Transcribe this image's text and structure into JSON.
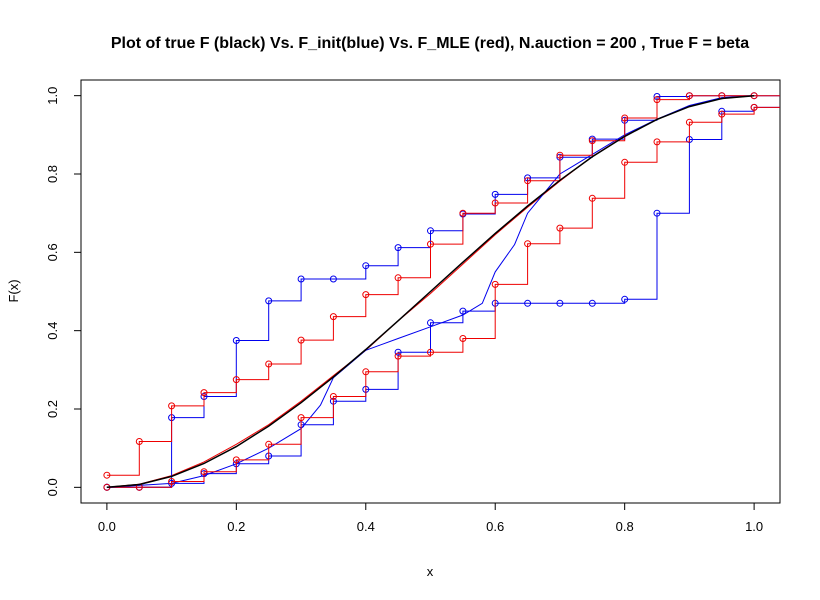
{
  "chart_data": {
    "type": "line",
    "title": "Plot of true F (black) Vs. F_init(blue) Vs. F_MLE (red), N.auction = 200 , True F = beta",
    "xlabel": "x",
    "ylabel": "F(x)",
    "xlim": [
      -0.04,
      1.04
    ],
    "ylim": [
      -0.04,
      1.04
    ],
    "x_ticks": [
      "0.0",
      "0.2",
      "0.4",
      "0.6",
      "0.8",
      "1.0"
    ],
    "y_ticks": [
      "0.0",
      "0.2",
      "0.4",
      "0.6",
      "0.8",
      "1.0"
    ],
    "grid": false,
    "colors": {
      "true": "#000000",
      "init": "#0000ee",
      "mle": "#ee0000"
    },
    "true_curve": {
      "x": [
        0,
        0.05,
        0.1,
        0.15,
        0.2,
        0.25,
        0.3,
        0.35,
        0.4,
        0.45,
        0.5,
        0.55,
        0.6,
        0.65,
        0.7,
        0.75,
        0.8,
        0.85,
        0.9,
        0.95,
        1.0
      ],
      "y": [
        0,
        0.0073,
        0.028,
        0.0608,
        0.104,
        0.1563,
        0.216,
        0.2818,
        0.352,
        0.4253,
        0.5,
        0.5748,
        0.648,
        0.7183,
        0.784,
        0.8438,
        0.896,
        0.9393,
        0.972,
        0.9928,
        1.0
      ]
    },
    "smooth_curves": [
      {
        "color": "red",
        "x": [
          0,
          0.05,
          0.1,
          0.15,
          0.2,
          0.25,
          0.3,
          0.35,
          0.4,
          0.45,
          0.5,
          0.55,
          0.6,
          0.65,
          0.7,
          0.75,
          0.8,
          0.85,
          0.9,
          0.95,
          1.0
        ],
        "y": [
          0,
          0.008,
          0.03,
          0.065,
          0.11,
          0.16,
          0.22,
          0.285,
          0.35,
          0.425,
          0.495,
          0.57,
          0.645,
          0.715,
          0.782,
          0.845,
          0.897,
          0.94,
          0.973,
          0.993,
          1.0
        ]
      },
      {
        "color": "blue",
        "x": [
          0,
          0.1,
          0.15,
          0.2,
          0.25,
          0.3,
          0.33,
          0.35,
          0.4,
          0.45,
          0.5,
          0.55,
          0.58,
          0.6,
          0.63,
          0.65,
          0.67,
          0.7,
          0.72,
          0.75,
          0.8,
          0.85,
          0.9,
          0.95,
          1.0
        ],
        "y": [
          0,
          0.01,
          0.03,
          0.06,
          0.1,
          0.15,
          0.21,
          0.28,
          0.35,
          0.38,
          0.41,
          0.44,
          0.47,
          0.55,
          0.62,
          0.7,
          0.74,
          0.8,
          0.82,
          0.85,
          0.9,
          0.94,
          0.975,
          0.995,
          1.0
        ]
      }
    ],
    "step_series": [
      {
        "color": "blue",
        "x": [
          0,
          0.05,
          0.1,
          0.15,
          0.2,
          0.25,
          0.3,
          0.35,
          0.4,
          0.45,
          0.5,
          0.55,
          0.6,
          0.65,
          0.7,
          0.75,
          0.8,
          0.85,
          0.9,
          0.95,
          1.0
        ],
        "y": [
          0,
          0,
          0.178,
          0.232,
          0.375,
          0.476,
          0.532,
          0.532,
          0.566,
          0.612,
          0.655,
          0.698,
          0.748,
          0.79,
          0.843,
          0.889,
          0.937,
          0.998,
          1.0,
          1.0,
          1.0
        ]
      },
      {
        "color": "red",
        "x": [
          0,
          0.05,
          0.1,
          0.15,
          0.2,
          0.25,
          0.3,
          0.35,
          0.4,
          0.45,
          0.5,
          0.55,
          0.6,
          0.65,
          0.7,
          0.75,
          0.8,
          0.85,
          0.9,
          0.95,
          1.0
        ],
        "y": [
          0.031,
          0.117,
          0.208,
          0.242,
          0.275,
          0.315,
          0.376,
          0.436,
          0.492,
          0.535,
          0.621,
          0.7,
          0.726,
          0.783,
          0.848,
          0.885,
          0.943,
          0.99,
          1.0,
          1.0,
          1.0
        ]
      },
      {
        "color": "blue",
        "x": [
          0,
          0.05,
          0.1,
          0.15,
          0.2,
          0.25,
          0.3,
          0.35,
          0.4,
          0.45,
          0.5,
          0.55,
          0.6,
          0.65,
          0.7,
          0.75,
          0.8,
          0.85,
          0.9,
          0.95,
          1.0
        ],
        "y": [
          0,
          0,
          0.01,
          0.035,
          0.06,
          0.08,
          0.16,
          0.22,
          0.25,
          0.345,
          0.42,
          0.45,
          0.47,
          0.47,
          0.47,
          0.47,
          0.48,
          0.7,
          0.888,
          0.96,
          0.97
        ]
      },
      {
        "color": "red",
        "x": [
          0,
          0.05,
          0.1,
          0.15,
          0.2,
          0.25,
          0.3,
          0.35,
          0.4,
          0.45,
          0.5,
          0.55,
          0.6,
          0.65,
          0.7,
          0.75,
          0.8,
          0.85,
          0.9,
          0.95,
          1.0
        ],
        "y": [
          0,
          0,
          0.015,
          0.04,
          0.07,
          0.11,
          0.178,
          0.232,
          0.295,
          0.335,
          0.345,
          0.38,
          0.518,
          0.622,
          0.662,
          0.738,
          0.83,
          0.882,
          0.932,
          0.953,
          0.97
        ]
      }
    ]
  }
}
